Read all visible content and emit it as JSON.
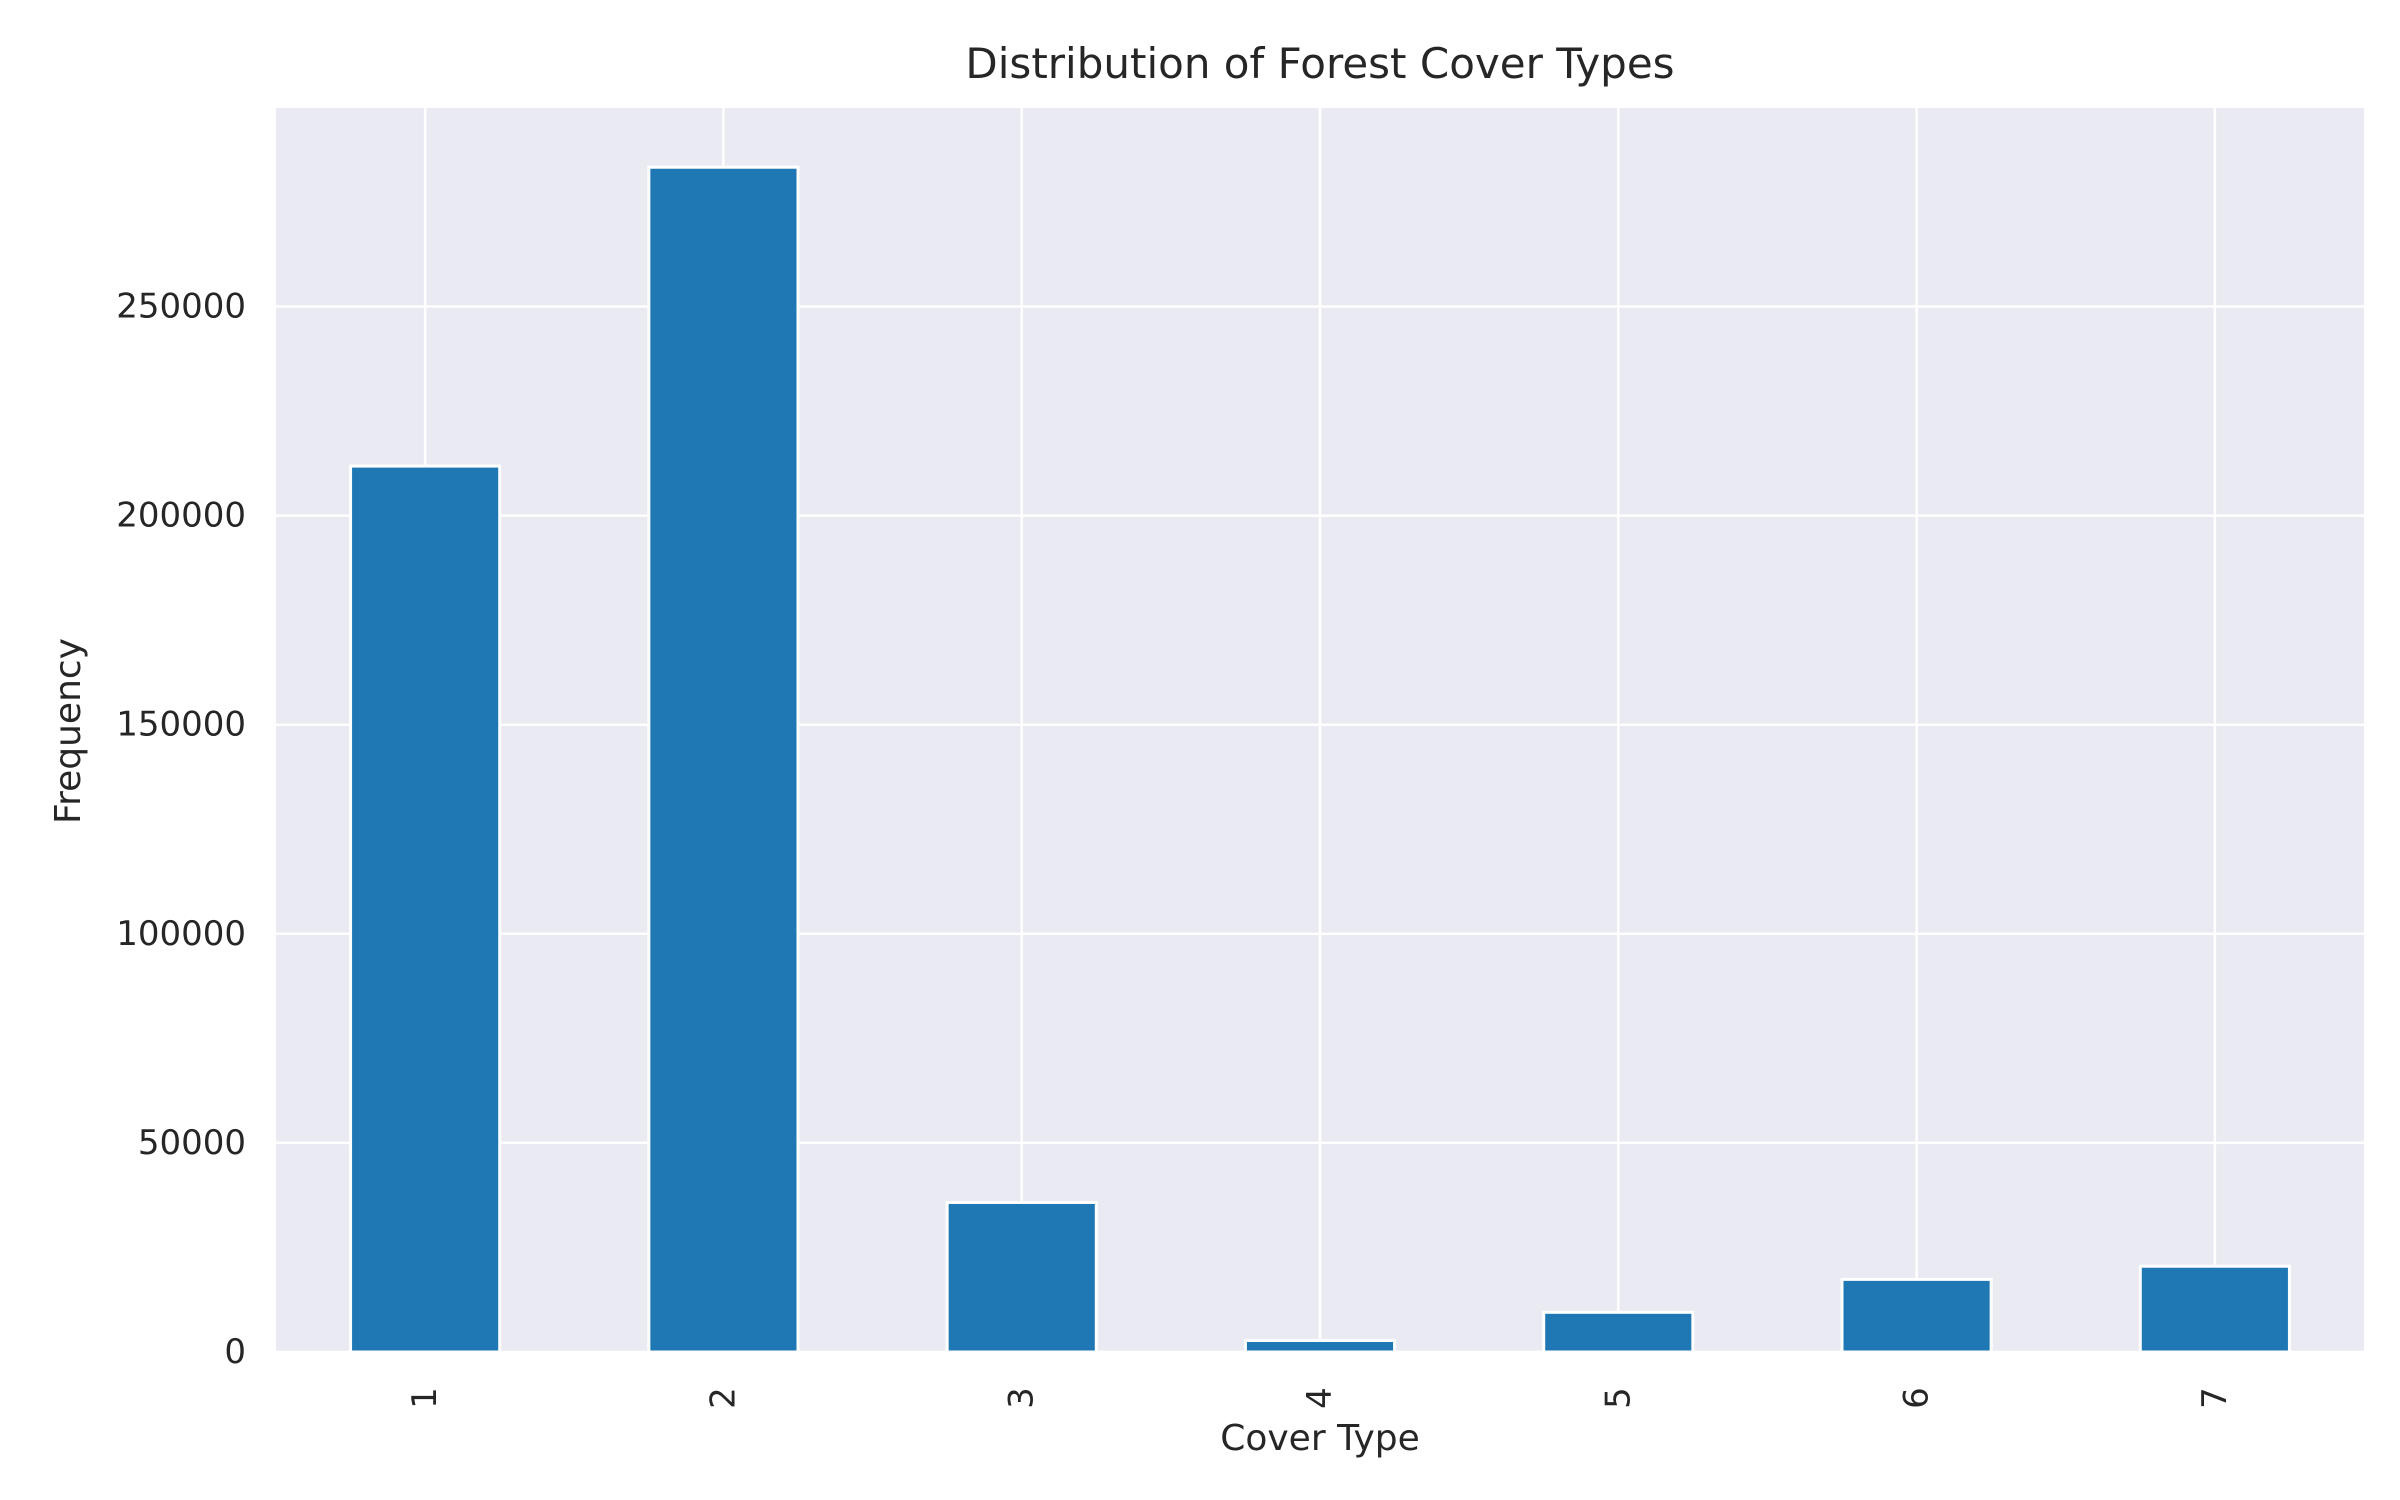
{
  "chart_data": {
    "type": "bar",
    "title": "Distribution of Forest Cover Types",
    "xlabel": "Cover Type",
    "ylabel": "Frequency",
    "categories": [
      "1",
      "2",
      "3",
      "4",
      "5",
      "6",
      "7"
    ],
    "values": [
      211840,
      283301,
      35754,
      2747,
      9493,
      17367,
      20510
    ],
    "ylim": [
      0,
      297466
    ],
    "yticks": [
      0,
      50000,
      100000,
      150000,
      200000,
      250000
    ],
    "ytick_labels": [
      "0",
      "50000",
      "100000",
      "150000",
      "200000",
      "250000"
    ],
    "xtick_rotation": 90,
    "grid": true,
    "legend": false,
    "colors": {
      "bar": "#1f77b4",
      "plot_background": "#eaeaf2",
      "grid": "#ffffff",
      "text": "#262626"
    }
  }
}
